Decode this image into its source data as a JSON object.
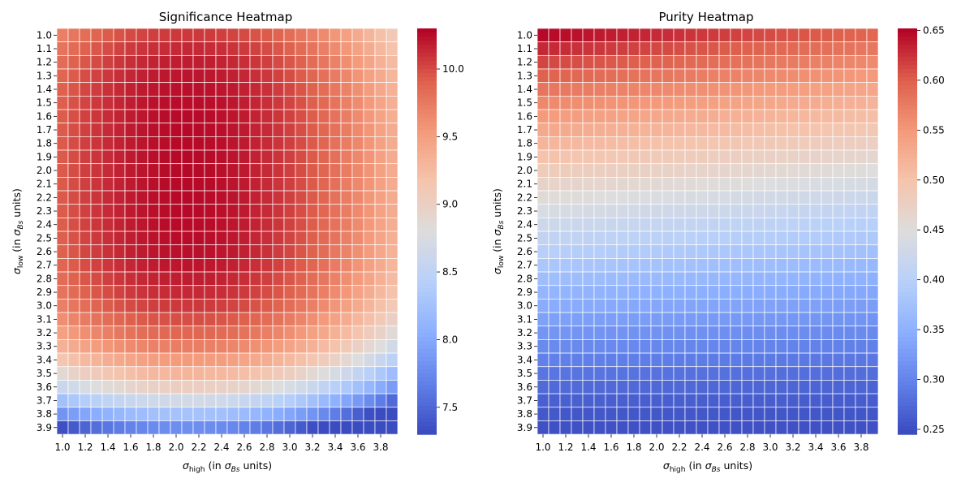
{
  "chart_data": [
    {
      "type": "heatmap",
      "title": "Significance Heatmap",
      "xlabel_symbol": "σ",
      "xlabel_sub": "high",
      "xlabel_mid": " (in ",
      "xlabel_symbol2": "σ",
      "xlabel_sub2": "Bs",
      "xlabel_end": " units)",
      "ylabel_symbol": "σ",
      "ylabel_sub": "low",
      "ylabel_mid": " (in ",
      "ylabel_symbol2": "σ",
      "ylabel_sub2": "Bs",
      "ylabel_end": " units)",
      "x": [
        1.0,
        1.1,
        1.2,
        1.3,
        1.4,
        1.5,
        1.6,
        1.7,
        1.8,
        1.9,
        2.0,
        2.1,
        2.2,
        2.3,
        2.4,
        2.5,
        2.6,
        2.7,
        2.8,
        2.9,
        3.0,
        3.1,
        3.2,
        3.3,
        3.4,
        3.5,
        3.6,
        3.7,
        3.8,
        3.9
      ],
      "y": [
        1.0,
        1.1,
        1.2,
        1.3,
        1.4,
        1.5,
        1.6,
        1.7,
        1.8,
        1.9,
        2.0,
        2.1,
        2.2,
        2.3,
        2.4,
        2.5,
        2.6,
        2.7,
        2.8,
        2.9,
        3.0,
        3.1,
        3.2,
        3.3,
        3.4,
        3.5,
        3.6,
        3.7,
        3.8,
        3.9
      ],
      "x_tick_labels": [
        "1.0",
        "1.2",
        "1.4",
        "1.6",
        "1.8",
        "2.0",
        "2.2",
        "2.4",
        "2.6",
        "2.8",
        "3.0",
        "3.2",
        "3.4",
        "3.6",
        "3.8"
      ],
      "y_tick_labels": [
        "1.0",
        "1.1",
        "1.2",
        "1.3",
        "1.4",
        "1.5",
        "1.6",
        "1.7",
        "1.8",
        "1.9",
        "2.0",
        "2.1",
        "2.2",
        "2.3",
        "2.4",
        "2.5",
        "2.6",
        "2.7",
        "2.8",
        "2.9",
        "3.0",
        "3.1",
        "3.2",
        "3.3",
        "3.4",
        "3.5",
        "3.6",
        "3.7",
        "3.8",
        "3.9"
      ],
      "value_model": "z = 10.28 - 0.33*((x-2.1)/1.1)^2*(1 + 0.4*((y-2.0)/1.9)^2) - 2.5*((y-2.0)/1.9)^4",
      "colormap": "coolwarm",
      "vmin": 7.3,
      "vmax": 10.3,
      "colorbar_ticks": [
        "7.5",
        "8.0",
        "8.5",
        "9.0",
        "9.5",
        "10.0"
      ]
    },
    {
      "type": "heatmap",
      "title": "Purity Heatmap",
      "xlabel_symbol": "σ",
      "xlabel_sub": "high",
      "xlabel_mid": " (in ",
      "xlabel_symbol2": "σ",
      "xlabel_sub2": "Bs",
      "xlabel_end": " units)",
      "ylabel_symbol": "σ",
      "ylabel_sub": "low",
      "ylabel_mid": " (in ",
      "ylabel_symbol2": "σ",
      "ylabel_sub2": "Bs",
      "ylabel_end": " units)",
      "x": [
        1.0,
        1.1,
        1.2,
        1.3,
        1.4,
        1.5,
        1.6,
        1.7,
        1.8,
        1.9,
        2.0,
        2.1,
        2.2,
        2.3,
        2.4,
        2.5,
        2.6,
        2.7,
        2.8,
        2.9,
        3.0,
        3.1,
        3.2,
        3.3,
        3.4,
        3.5,
        3.6,
        3.7,
        3.8,
        3.9
      ],
      "y": [
        1.0,
        1.1,
        1.2,
        1.3,
        1.4,
        1.5,
        1.6,
        1.7,
        1.8,
        1.9,
        2.0,
        2.1,
        2.2,
        2.3,
        2.4,
        2.5,
        2.6,
        2.7,
        2.8,
        2.9,
        3.0,
        3.1,
        3.2,
        3.3,
        3.4,
        3.5,
        3.6,
        3.7,
        3.8,
        3.9
      ],
      "x_tick_labels": [
        "1.0",
        "1.2",
        "1.4",
        "1.6",
        "1.8",
        "2.0",
        "2.2",
        "2.4",
        "2.6",
        "2.8",
        "3.0",
        "3.2",
        "3.4",
        "3.6",
        "3.8"
      ],
      "y_tick_labels": [
        "1.0",
        "1.1",
        "1.2",
        "1.3",
        "1.4",
        "1.5",
        "1.6",
        "1.7",
        "1.8",
        "1.9",
        "2.0",
        "2.1",
        "2.2",
        "2.3",
        "2.4",
        "2.5",
        "2.6",
        "2.7",
        "2.8",
        "2.9",
        "3.0",
        "3.1",
        "3.2",
        "3.3",
        "3.4",
        "3.5",
        "3.6",
        "3.7",
        "3.8",
        "3.9"
      ],
      "value_model": "z = 0.25 + 0.40*(1-(y-1)/2.9)^1.25 - 0.055*(x-1)/2.9*(1-(y-1)/2.9)",
      "colormap": "coolwarm",
      "vmin": 0.245,
      "vmax": 0.652,
      "colorbar_ticks": [
        "0.25",
        "0.30",
        "0.35",
        "0.40",
        "0.45",
        "0.50",
        "0.55",
        "0.60",
        "0.65"
      ]
    }
  ]
}
